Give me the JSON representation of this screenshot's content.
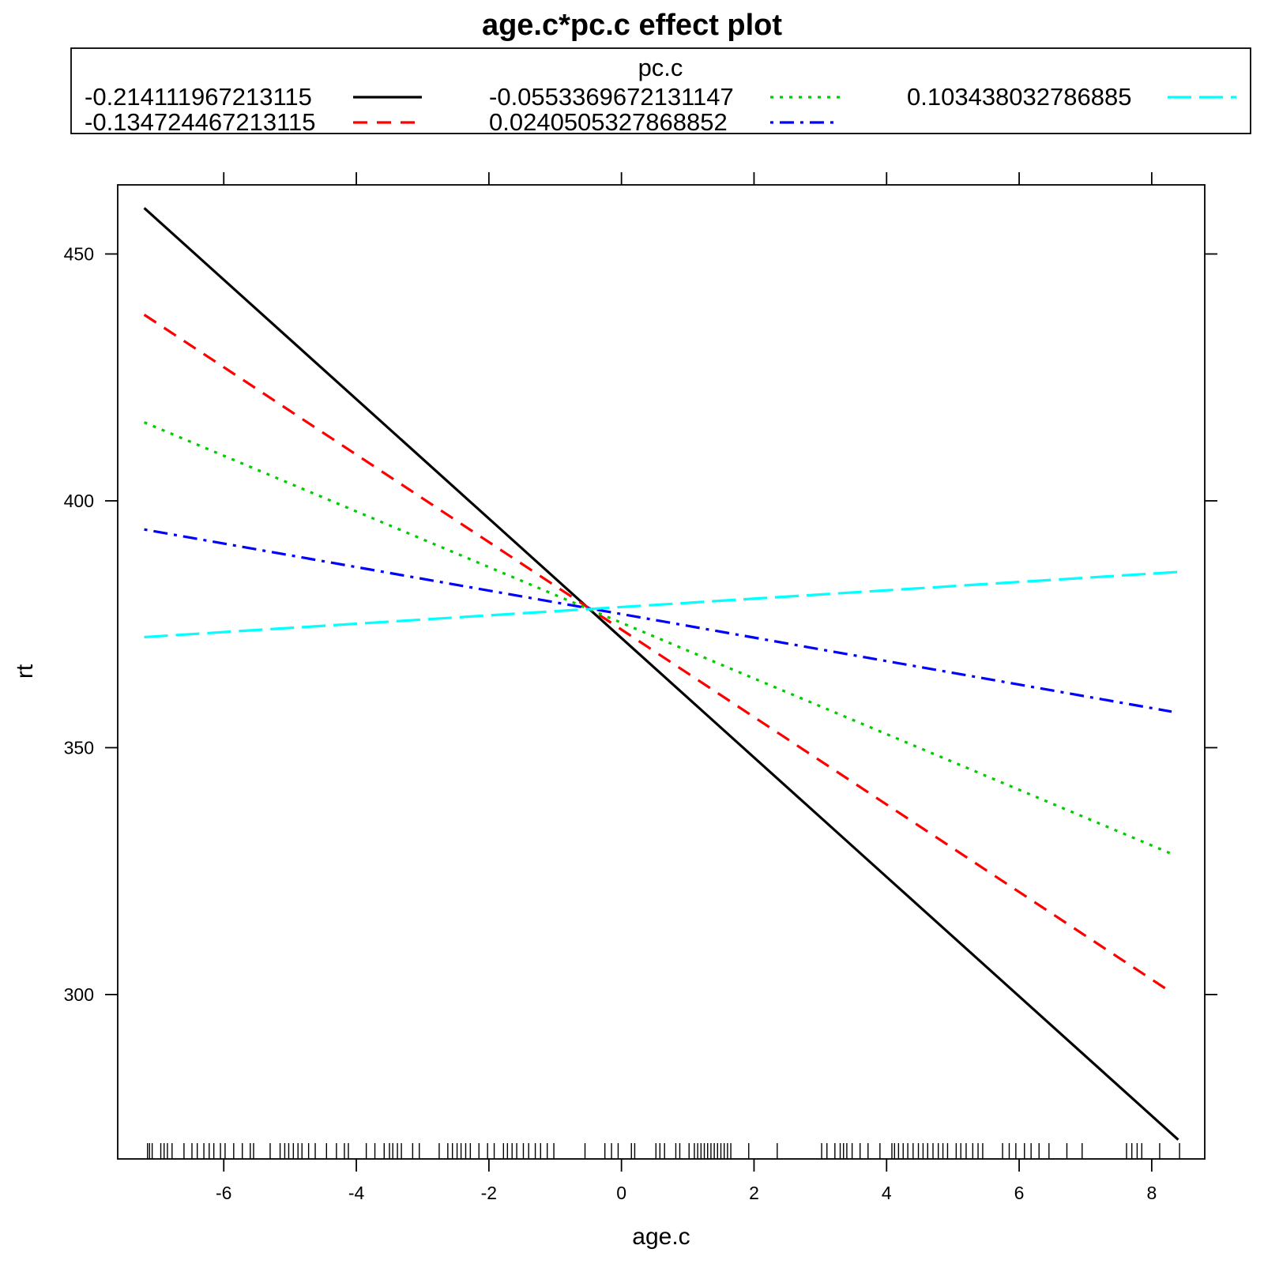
{
  "chart_data": {
    "type": "line",
    "title": "age.c*pc.c effect plot",
    "xlabel": "age.c",
    "ylabel": "rt",
    "xlim": [
      -7.6,
      8.8
    ],
    "ylim": [
      266.7,
      464.0
    ],
    "x_ticks": [
      -6,
      -4,
      -2,
      0,
      2,
      4,
      6,
      8
    ],
    "x_tick_labels": [
      "-6",
      "-4",
      "-2",
      "0",
      "2",
      "4",
      "6",
      "8"
    ],
    "y_ticks": [
      300,
      350,
      400,
      450
    ],
    "y_tick_labels": [
      "300",
      "350",
      "400",
      "450"
    ],
    "legend": {
      "title": "pc.c",
      "placement": "top",
      "columns": 3
    },
    "series": [
      {
        "name": "-0.214111967213115",
        "color": "#000000",
        "dash": "solid",
        "x": [
          -7.2,
          8.4
        ],
        "y": [
          459.3,
          270.6
        ]
      },
      {
        "name": "-0.134724467213115",
        "color": "#ff0000",
        "dash": "dashed",
        "x": [
          -7.2,
          8.3
        ],
        "y": [
          437.7,
          300.4
        ]
      },
      {
        "name": "-0.0553369672131147",
        "color": "#00cd00",
        "dash": "dotted",
        "x": [
          -7.2,
          8.3
        ],
        "y": [
          415.9,
          328.5
        ]
      },
      {
        "name": "0.0240505327868852",
        "color": "#0000ff",
        "dash": "dotdash",
        "x": [
          -7.2,
          8.3
        ],
        "y": [
          394.2,
          357.3
        ]
      },
      {
        "name": "0.103438032786885",
        "color": "#00ffff",
        "dash": "longdash",
        "x": [
          -7.2,
          8.4
        ],
        "y": [
          372.4,
          385.6
        ]
      }
    ],
    "rug_x": [
      -7.15,
      -7.12,
      -7.08,
      -6.95,
      -6.9,
      -6.85,
      -6.78,
      -6.6,
      -6.48,
      -6.4,
      -6.3,
      -6.22,
      -6.15,
      -6.05,
      -5.98,
      -5.85,
      -5.72,
      -5.6,
      -5.55,
      -5.3,
      -5.15,
      -5.08,
      -5.02,
      -4.95,
      -4.88,
      -4.82,
      -4.72,
      -4.62,
      -4.45,
      -4.3,
      -4.18,
      -4.12,
      -3.85,
      -3.72,
      -3.58,
      -3.5,
      -3.45,
      -3.38,
      -3.32,
      -3.15,
      -3.05,
      -2.75,
      -2.62,
      -2.55,
      -2.48,
      -2.42,
      -2.35,
      -2.28,
      -2.15,
      -2.02,
      -1.92,
      -1.78,
      -1.72,
      -1.65,
      -1.58,
      -1.48,
      -1.4,
      -1.3,
      -1.22,
      -1.12,
      -1.02,
      -0.55,
      -0.25,
      -0.15,
      -0.05,
      0.15,
      0.2,
      0.52,
      0.58,
      0.65,
      0.82,
      0.88,
      1.02,
      1.1,
      1.15,
      1.2,
      1.25,
      1.3,
      1.35,
      1.4,
      1.45,
      1.5,
      1.55,
      1.6,
      1.65,
      1.92,
      2.35,
      3.02,
      3.1,
      3.22,
      3.3,
      3.35,
      3.4,
      3.48,
      3.6,
      3.72,
      3.9,
      4.08,
      4.12,
      4.18,
      4.25,
      4.32,
      4.4,
      4.48,
      4.55,
      4.62,
      4.7,
      4.78,
      4.85,
      4.92,
      5.05,
      5.12,
      5.2,
      5.3,
      5.38,
      5.45,
      5.75,
      5.85,
      5.95,
      6.08,
      6.18,
      6.3,
      6.45,
      6.72,
      6.95,
      7.62,
      7.7,
      7.78,
      7.85,
      8.12,
      8.42
    ]
  }
}
